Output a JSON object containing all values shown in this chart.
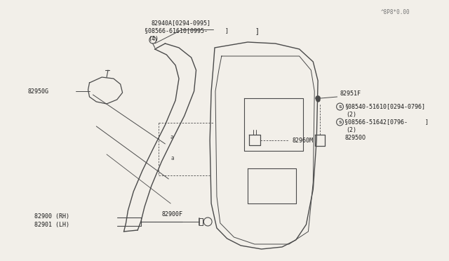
{
  "bg_color": "#f2efe9",
  "line_color": "#4a4a4a",
  "text_color": "#1a1a1a",
  "watermark": "^8P8*0.00",
  "labels": {
    "82940A": {
      "text": "82940A[0294-0995]"
    },
    "08566_top": {
      "text": "§08566-61610[0995-     ]"
    },
    "4": {
      "text": "(4)"
    },
    "82950G": {
      "text": "82950G"
    },
    "82960M": {
      "text": "82960M"
    },
    "82900_RH": {
      "text": "82900 (RH)"
    },
    "82901_LH": {
      "text": "82901 (LH)"
    },
    "82900F": {
      "text": "82900F"
    },
    "82951F": {
      "text": "82951F"
    },
    "08540": {
      "text": "§08540-51610[0294-0796]"
    },
    "2_1": {
      "text": "(2)"
    },
    "08566_bot": {
      "text": "§08566-51642[0796-     ]"
    },
    "2_2": {
      "text": "(2)"
    },
    "82950O": {
      "text": "82950O"
    }
  }
}
